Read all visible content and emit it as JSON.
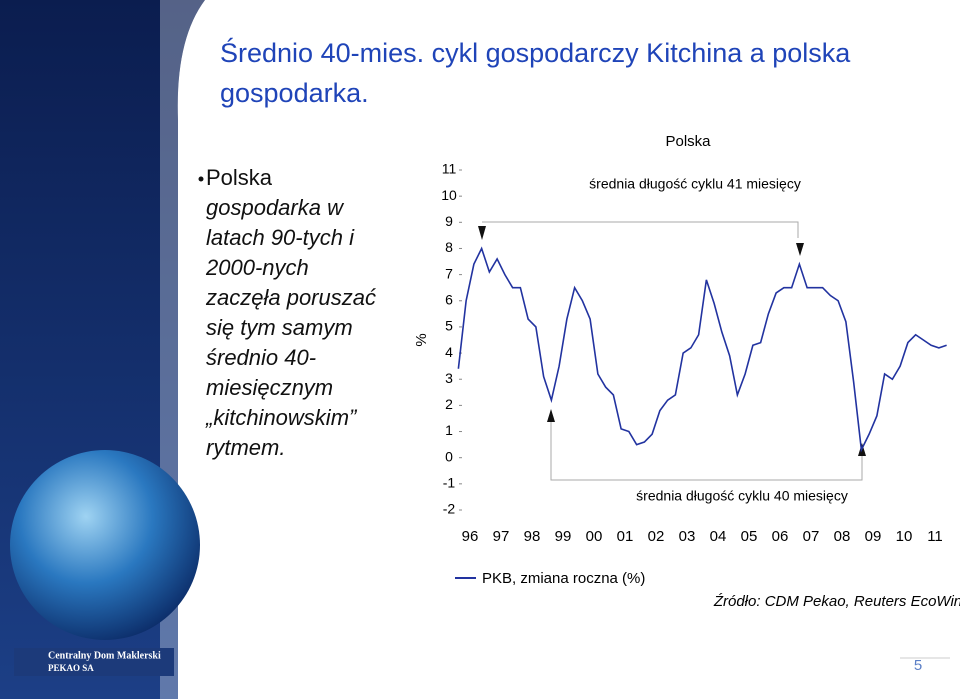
{
  "slide": {
    "title": "Średnio 40-mies. cykl gospodarczy Kitchina a polska gospodarka.",
    "bullet_lines": [
      "Polska",
      "gospodarka w",
      "latach 90-tych i",
      "2000-nych",
      "zaczęła poruszać",
      "się tym samym",
      "średnio 40-",
      "miesięcznym",
      "„kitchinowskim”",
      "rytmem."
    ],
    "logo_lines": [
      "Centralny Dom Maklerski",
      "PEKAO SA"
    ],
    "source": "Źródło: CDM Pekao, Reuters EcoWin",
    "page_number": "5"
  },
  "chart_data": {
    "type": "line",
    "title": "Polska",
    "ylabel": "%",
    "annotations": [
      "średnia długość cyklu 41 miesięcy",
      "średnia długość cyklu 40 miesięcy"
    ],
    "x": [
      1996.125,
      1996.375,
      1996.625,
      1996.875,
      1997.125,
      1997.375,
      1997.625,
      1997.875,
      1998.125,
      1998.375,
      1998.625,
      1998.875,
      1999.125,
      1999.375,
      1999.625,
      1999.875,
      2000.125,
      2000.375,
      2000.625,
      2000.875,
      2001.125,
      2001.375,
      2001.625,
      2001.875,
      2002.125,
      2002.375,
      2002.625,
      2002.875,
      2003.125,
      2003.375,
      2003.625,
      2003.875,
      2004.125,
      2004.375,
      2004.625,
      2004.875,
      2005.125,
      2005.375,
      2005.625,
      2005.875,
      2006.125,
      2006.375,
      2006.625,
      2006.875,
      2007.125,
      2007.375,
      2007.625,
      2007.875,
      2008.125,
      2008.375,
      2008.625,
      2008.875,
      2009.125,
      2009.375,
      2009.625,
      2009.875,
      2010.125,
      2010.375,
      2010.625,
      2010.875,
      2011.125,
      2011.375,
      2011.625,
      2011.875
    ],
    "series": [
      {
        "name": "PKB, zmiana roczna (%)",
        "color": "#2233a0",
        "values": [
          3.4,
          6.0,
          7.4,
          8.0,
          7.1,
          7.6,
          7.0,
          6.5,
          6.5,
          5.3,
          5.0,
          3.1,
          2.2,
          3.5,
          5.3,
          6.5,
          6.0,
          5.3,
          3.2,
          2.7,
          2.4,
          1.1,
          1.0,
          0.5,
          0.6,
          0.9,
          1.8,
          2.2,
          2.4,
          4.0,
          4.2,
          4.7,
          6.8,
          5.9,
          4.8,
          3.9,
          2.4,
          3.2,
          4.3,
          4.4,
          5.5,
          6.3,
          6.5,
          6.5,
          7.4,
          6.5,
          6.5,
          6.5,
          6.2,
          6.0,
          5.2,
          2.9,
          0.3,
          0.9,
          1.6,
          3.2,
          3.0,
          3.5,
          4.4,
          4.7,
          4.5,
          4.3,
          4.2,
          4.3
        ]
      }
    ],
    "xlim": [
      1996,
      2012
    ],
    "xticks": [
      {
        "value": 1996.5,
        "label": "96"
      },
      {
        "value": 1997.5,
        "label": "97"
      },
      {
        "value": 1998.5,
        "label": "98"
      },
      {
        "value": 1999.5,
        "label": "99"
      },
      {
        "value": 2000.5,
        "label": "00"
      },
      {
        "value": 2001.5,
        "label": "01"
      },
      {
        "value": 2002.5,
        "label": "02"
      },
      {
        "value": 2003.5,
        "label": "03"
      },
      {
        "value": 2004.5,
        "label": "04"
      },
      {
        "value": 2005.5,
        "label": "05"
      },
      {
        "value": 2006.5,
        "label": "06"
      },
      {
        "value": 2007.5,
        "label": "07"
      },
      {
        "value": 2008.5,
        "label": "08"
      },
      {
        "value": 2009.5,
        "label": "09"
      },
      {
        "value": 2010.5,
        "label": "10"
      },
      {
        "value": 2011.5,
        "label": "11"
      }
    ],
    "ylim": [
      -2,
      11
    ],
    "yticks": [
      -2,
      -1,
      0,
      1,
      2,
      3,
      4,
      5,
      6,
      7,
      8,
      9,
      10,
      11
    ]
  }
}
